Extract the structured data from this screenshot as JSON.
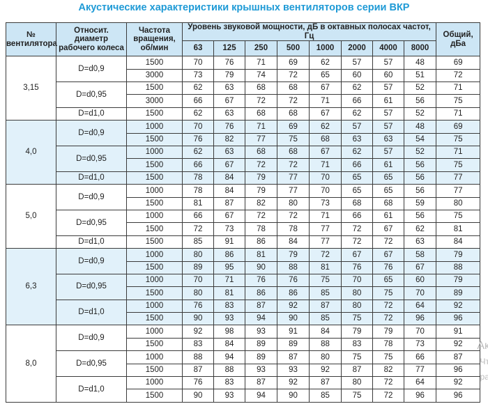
{
  "title": "Акустические характеристики крышных вентиляторов серии ВКР",
  "header": {
    "fan_no": "№ вентилятора",
    "rel_diameter": "Относит. диаметр рабочего колеса",
    "rpm": "Частота вращения, об/мин",
    "sound_level": "Уровень звуковой мощности, дБ в октавных полосах частот, Гц",
    "bands": [
      "63",
      "125",
      "250",
      "500",
      "1000",
      "2000",
      "4000",
      "8000"
    ],
    "total": "Общий, дБа"
  },
  "colors": {
    "title": "#1e9ad6",
    "header_bg": "#cde6f5",
    "alt_group_bg": "#e1f1fa"
  },
  "groups": [
    {
      "fan": "3,15",
      "subgroups": [
        {
          "d": "D=d0,9",
          "rows": [
            [
              "1500",
              "70",
              "76",
              "71",
              "69",
              "62",
              "57",
              "57",
              "48",
              "69"
            ],
            [
              "3000",
              "73",
              "79",
              "74",
              "72",
              "65",
              "60",
              "60",
              "51",
              "72"
            ]
          ]
        },
        {
          "d": "D=d0,95",
          "rows": [
            [
              "1500",
              "62",
              "63",
              "68",
              "68",
              "67",
              "62",
              "57",
              "52",
              "71"
            ],
            [
              "3000",
              "66",
              "67",
              "72",
              "72",
              "71",
              "66",
              "61",
              "56",
              "75"
            ]
          ]
        },
        {
          "d": "D=d1,0",
          "rows": [
            [
              "1500",
              "62",
              "63",
              "68",
              "68",
              "67",
              "62",
              "57",
              "52",
              "71"
            ]
          ]
        }
      ]
    },
    {
      "fan": "4,0",
      "subgroups": [
        {
          "d": "D=d0,9",
          "rows": [
            [
              "1000",
              "70",
              "76",
              "71",
              "69",
              "62",
              "57",
              "57",
              "48",
              "69"
            ],
            [
              "1500",
              "76",
              "82",
              "77",
              "75",
              "68",
              "63",
              "63",
              "54",
              "75"
            ]
          ]
        },
        {
          "d": "D=d0,95",
          "rows": [
            [
              "1000",
              "62",
              "63",
              "68",
              "68",
              "67",
              "62",
              "57",
              "52",
              "71"
            ],
            [
              "1500",
              "66",
              "67",
              "72",
              "72",
              "71",
              "66",
              "61",
              "56",
              "75"
            ]
          ]
        },
        {
          "d": "D=d1,0",
          "rows": [
            [
              "1500",
              "78",
              "84",
              "79",
              "77",
              "70",
              "65",
              "65",
              "56",
              "77"
            ]
          ]
        }
      ]
    },
    {
      "fan": "5,0",
      "subgroups": [
        {
          "d": "D=d0,9",
          "rows": [
            [
              "1000",
              "78",
              "84",
              "79",
              "77",
              "70",
              "65",
              "65",
              "56",
              "77"
            ],
            [
              "1500",
              "81",
              "87",
              "82",
              "80",
              "73",
              "68",
              "68",
              "59",
              "80"
            ]
          ]
        },
        {
          "d": "D=d0,95",
          "rows": [
            [
              "1000",
              "66",
              "67",
              "72",
              "72",
              "71",
              "66",
              "61",
              "56",
              "75"
            ],
            [
              "1500",
              "72",
              "73",
              "78",
              "78",
              "77",
              "72",
              "67",
              "62",
              "81"
            ]
          ]
        },
        {
          "d": "D=d1,0",
          "rows": [
            [
              "1500",
              "85",
              "91",
              "86",
              "84",
              "77",
              "72",
              "72",
              "63",
              "84"
            ]
          ]
        }
      ]
    },
    {
      "fan": "6,3",
      "subgroups": [
        {
          "d": "D=d0,9",
          "rows": [
            [
              "1000",
              "80",
              "86",
              "81",
              "79",
              "72",
              "67",
              "67",
              "58",
              "79"
            ],
            [
              "1500",
              "89",
              "95",
              "90",
              "88",
              "81",
              "76",
              "76",
              "67",
              "88"
            ]
          ]
        },
        {
          "d": "D=d0,95",
          "rows": [
            [
              "1000",
              "70",
              "71",
              "76",
              "76",
              "75",
              "70",
              "65",
              "60",
              "79"
            ],
            [
              "1500",
              "80",
              "81",
              "86",
              "86",
              "85",
              "80",
              "75",
              "70",
              "89"
            ]
          ]
        },
        {
          "d": "D=d1,0",
          "rows": [
            [
              "1000",
              "76",
              "83",
              "87",
              "92",
              "87",
              "80",
              "72",
              "64",
              "92"
            ],
            [
              "1500",
              "90",
              "93",
              "94",
              "90",
              "85",
              "75",
              "72",
              "96",
              "96"
            ]
          ]
        }
      ]
    },
    {
      "fan": "8,0",
      "subgroups": [
        {
          "d": "D=d0,9",
          "rows": [
            [
              "1000",
              "92",
              "98",
              "93",
              "91",
              "84",
              "79",
              "79",
              "70",
              "91"
            ],
            [
              "1500",
              "83",
              "84",
              "89",
              "89",
              "88",
              "83",
              "78",
              "73",
              "92"
            ]
          ]
        },
        {
          "d": "D=d0,95",
          "rows": [
            [
              "1000",
              "88",
              "94",
              "89",
              "87",
              "80",
              "75",
              "75",
              "66",
              "87"
            ],
            [
              "1500",
              "87",
              "88",
              "93",
              "93",
              "92",
              "87",
              "82",
              "77",
              "96"
            ]
          ]
        },
        {
          "d": "D=d1,0",
          "rows": [
            [
              "1000",
              "76",
              "83",
              "87",
              "92",
              "87",
              "80",
              "72",
              "64",
              "92"
            ],
            [
              "1500",
              "90",
              "93",
              "94",
              "90",
              "85",
              "75",
              "72",
              "96",
              "96"
            ]
          ]
        }
      ]
    }
  ],
  "watermark": [
    "Ак",
    "Чт",
    "ра"
  ]
}
